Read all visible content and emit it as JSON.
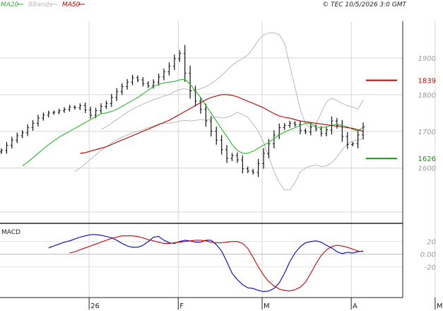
{
  "header": {
    "legend": [
      {
        "label": "MA20",
        "color": "#2db52d"
      },
      {
        "label": "BBands",
        "color": "#b8b8b8"
      },
      {
        "label": "MA50",
        "color": "#b00000"
      }
    ],
    "copyright": "© TEC 10/5/2026 3:0 GMT"
  },
  "chart_data": [
    {
      "type": "ohlc",
      "title": "",
      "y_tick_labels": [
        "1900",
        "1800",
        "1700",
        "1600"
      ],
      "y_ticks": [
        1900,
        1800,
        1700,
        1600
      ],
      "ylim": [
        1480,
        2000
      ],
      "x_tick_labels": [
        "26",
        "F",
        "M",
        "A",
        "M"
      ],
      "x_tick_index": [
        17,
        34,
        50,
        67,
        83
      ],
      "grid": true,
      "levels": [
        {
          "label": "1839",
          "value": 1839,
          "color": "#cc0000"
        },
        {
          "label": "1626",
          "value": 1626,
          "color": "#0a9a0a"
        }
      ],
      "close": [
        1648,
        1662,
        1676,
        1688,
        1696,
        1710,
        1722,
        1736,
        1744,
        1750,
        1752,
        1756,
        1760,
        1766,
        1764,
        1770,
        1758,
        1744,
        1756,
        1768,
        1776,
        1792,
        1808,
        1822,
        1834,
        1846,
        1840,
        1830,
        1824,
        1834,
        1848,
        1862,
        1878,
        1898,
        1912,
        1858,
        1810,
        1782,
        1760,
        1728,
        1700,
        1676,
        1650,
        1626,
        1634,
        1622,
        1598,
        1592,
        1588,
        1612,
        1640,
        1666,
        1690,
        1710,
        1716,
        1722,
        1718,
        1702,
        1698,
        1712,
        1706,
        1694,
        1704,
        1728,
        1716,
        1686,
        1664,
        1666,
        1690,
        1712
      ],
      "series": [
        {
          "name": "MA20",
          "color": "#2db52d",
          "values": [
            1606,
            1616,
            1628,
            1640,
            1652,
            1664,
            1674,
            1684,
            1692,
            1700,
            1708,
            1716,
            1724,
            1732,
            1740,
            1748,
            1750,
            1754,
            1760,
            1768,
            1776,
            1784,
            1792,
            1802,
            1812,
            1822,
            1828,
            1832,
            1834,
            1836,
            1840,
            1842,
            1828,
            1810,
            1792,
            1770,
            1750,
            1728,
            1706,
            1686,
            1664,
            1648,
            1640,
            1640,
            1646,
            1654,
            1662,
            1670,
            1680,
            1690,
            1698,
            1704,
            1710,
            1716,
            1722,
            1722,
            1712,
            1710,
            1712,
            1716,
            1720,
            1716,
            1712,
            1706,
            1700,
            1712
          ]
        },
        {
          "name": "MA50",
          "color": "#b00000",
          "values": [
            1640,
            1642,
            1646,
            1650,
            1654,
            1658,
            1664,
            1670,
            1676,
            1682,
            1688,
            1694,
            1700,
            1706,
            1712,
            1718,
            1724,
            1730,
            1738,
            1746,
            1754,
            1762,
            1770,
            1778,
            1786,
            1792,
            1796,
            1800,
            1800,
            1798,
            1794,
            1788,
            1782,
            1776,
            1770,
            1764,
            1756,
            1748,
            1742,
            1738,
            1736,
            1732,
            1728,
            1726,
            1724,
            1722,
            1720,
            1718,
            1716,
            1714,
            1712,
            1710,
            1708,
            1704,
            1700
          ]
        },
        {
          "name": "BBands upper",
          "color": "#b8b8b8",
          "values": [
            1705,
            1712,
            1722,
            1732,
            1742,
            1752,
            1760,
            1768,
            1774,
            1780,
            1786,
            1790,
            1796,
            1800,
            1808,
            1814,
            1816,
            1812,
            1812,
            1816,
            1822,
            1830,
            1840,
            1852,
            1866,
            1880,
            1890,
            1898,
            1908,
            1926,
            1948,
            1962,
            1968,
            1968,
            1964,
            1940,
            1880,
            1820,
            1760,
            1720,
            1710,
            1720,
            1750,
            1780,
            1790,
            1784,
            1776,
            1770,
            1766,
            1760,
            1786
          ]
        },
        {
          "name": "BBands lower",
          "color": "#b8b8b8",
          "values": [
            1590,
            1600,
            1612,
            1624,
            1636,
            1648,
            1658,
            1668,
            1676,
            1684,
            1690,
            1696,
            1700,
            1704,
            1710,
            1714,
            1720,
            1722,
            1722,
            1724,
            1728,
            1730,
            1728,
            1730,
            1732,
            1730,
            1734,
            1740,
            1736,
            1738,
            1744,
            1752,
            1746,
            1738,
            1720,
            1700,
            1670,
            1630,
            1590,
            1560,
            1540,
            1540,
            1560,
            1590,
            1600,
            1606,
            1608,
            1604,
            1606,
            1614,
            1630,
            1650,
            1666,
            1674,
            1676,
            1680
          ]
        }
      ]
    },
    {
      "type": "line",
      "title": "MACD",
      "y_tick_labels": [
        "20",
        "0.00",
        "-20"
      ],
      "y_ticks": [
        20,
        0,
        -20
      ],
      "ylim": [
        -65,
        42
      ],
      "series": [
        {
          "name": "MACD",
          "color": "#0000c8",
          "values": [
            10,
            13,
            16,
            19,
            21,
            24,
            27,
            29,
            31,
            31,
            30,
            28,
            26,
            22,
            17,
            13,
            11,
            11,
            14,
            20,
            27,
            28,
            22,
            18,
            17,
            20,
            22,
            21,
            19,
            19,
            22,
            22,
            15,
            5,
            -12,
            -30,
            -40,
            -48,
            -53,
            -54,
            -57,
            -59,
            -58,
            -54,
            -45,
            -30,
            -12,
            2,
            12,
            18,
            20,
            21,
            19,
            14,
            10,
            4,
            1,
            3,
            2,
            4,
            5
          ]
        },
        {
          "name": "Signal",
          "color": "#c80000",
          "values": [
            2,
            4,
            7,
            10,
            13,
            16,
            19,
            22,
            25,
            27,
            29,
            29,
            29,
            28,
            26,
            23,
            21,
            19,
            17,
            17,
            18,
            19,
            20,
            21,
            22,
            22,
            21,
            19,
            18,
            18,
            19,
            20,
            20,
            17,
            9,
            -5,
            -20,
            -33,
            -43,
            -50,
            -55,
            -57,
            -58,
            -56,
            -52,
            -44,
            -30,
            -15,
            -2,
            7,
            12,
            14,
            13,
            11,
            8,
            5,
            4
          ]
        }
      ]
    }
  ]
}
